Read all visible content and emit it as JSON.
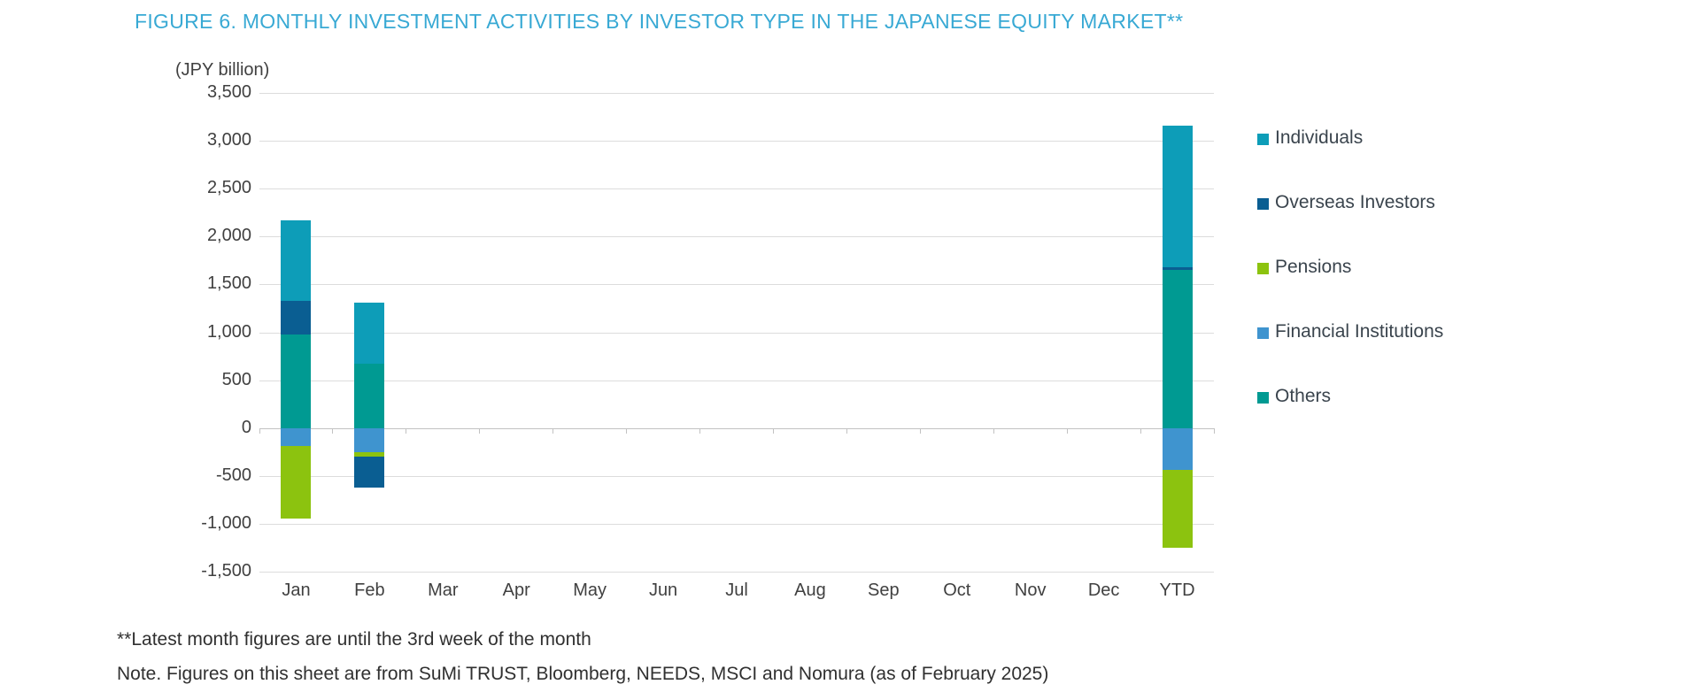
{
  "header": {
    "title": "FIGURE 6. MONTHLY INVESTMENT ACTIVITIES BY INVESTOR TYPE IN THE JAPANESE EQUITY MARKET**",
    "title_color": "#38a9d4"
  },
  "footnotes": {
    "line1": "**Latest month figures are until the 3rd week of the month",
    "line2": "Note. Figures on this sheet are from SuMi TRUST, Bloomberg, NEEDS, MSCI and Nomura (as of February 2025)"
  },
  "chart_data": {
    "type": "bar",
    "subtype": "stacked-bar-with-negatives",
    "title": "FIGURE 6. MONTHLY INVESTMENT ACTIVITIES BY INVESTOR TYPE IN THE JAPANESE EQUITY MARKET**",
    "unit_label": "(JPY billion)",
    "categories": [
      "Jan",
      "Feb",
      "Mar",
      "Apr",
      "May",
      "Jun",
      "Jul",
      "Aug",
      "Sep",
      "Oct",
      "Nov",
      "Dec",
      "YTD"
    ],
    "series": [
      {
        "name": "Individuals",
        "color": "#0d9db8",
        "values": [
          840,
          640,
          0,
          0,
          0,
          0,
          0,
          0,
          0,
          0,
          0,
          0,
          1480
        ]
      },
      {
        "name": "Overseas Investors",
        "color": "#0a5e92",
        "values": [
          350,
          -320,
          0,
          0,
          0,
          0,
          0,
          0,
          0,
          0,
          0,
          0,
          30
        ]
      },
      {
        "name": "Pensions",
        "color": "#8cc30f",
        "values": [
          -760,
          -50,
          0,
          0,
          0,
          0,
          0,
          0,
          0,
          0,
          0,
          0,
          -810
        ]
      },
      {
        "name": "Financial Institutions",
        "color": "#3f94cf",
        "values": [
          -190,
          -250,
          0,
          0,
          0,
          0,
          0,
          0,
          0,
          0,
          0,
          0,
          -440
        ]
      },
      {
        "name": "Others",
        "color": "#009a92",
        "values": [
          980,
          670,
          0,
          0,
          0,
          0,
          0,
          0,
          0,
          0,
          0,
          0,
          1650
        ]
      }
    ],
    "stacking": "positives and negatives stacked from zero; draw order from axis outward is reverse of legend order (Others, Financial Institutions, Pensions, Overseas Investors, Individuals)",
    "ylim": [
      -1500,
      3500
    ],
    "ytick_step": 500,
    "ylabel": "(JPY billion)",
    "xlabel": "",
    "grid": true,
    "gridline_color": "#dcdcdc",
    "zero_line_color": "#c2c2c2",
    "axis_text_color": "#404040",
    "legend_position": "right",
    "legend_text_color": "#3a444d"
  }
}
